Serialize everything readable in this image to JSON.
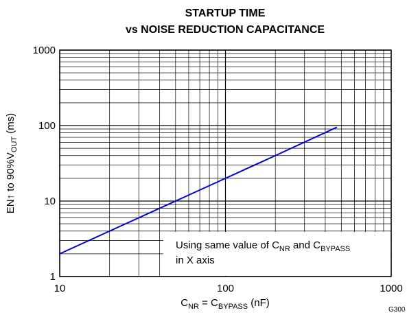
{
  "chart_data": {
    "type": "line",
    "title": [
      "STARTUP TIME",
      "vs NOISE REDUCTION CAPACITANCE"
    ],
    "x_label": [
      "C",
      "NR",
      " = C",
      "BYPASS",
      " (nF)"
    ],
    "y_label": [
      "EN↑ to 90%V",
      "OUT",
      " (ms)"
    ],
    "annotation": [
      [
        "Using same value of C",
        "NR",
        " and C",
        "BYPASS"
      ],
      [
        "in X axis"
      ]
    ],
    "corner_label": "G300",
    "x": [
      10,
      20,
      50,
      100,
      200,
      470
    ],
    "series": [
      {
        "color": "#0000dd",
        "values": [
          2,
          4,
          10,
          20,
          40,
          95
        ]
      }
    ],
    "xlim": [
      10,
      1000
    ],
    "xticks": [
      10,
      100,
      1000
    ],
    "ylim": [
      1,
      1000
    ],
    "yticks": [
      1,
      10,
      100,
      1000
    ],
    "xlog": true,
    "ylog": true,
    "grid": true
  }
}
